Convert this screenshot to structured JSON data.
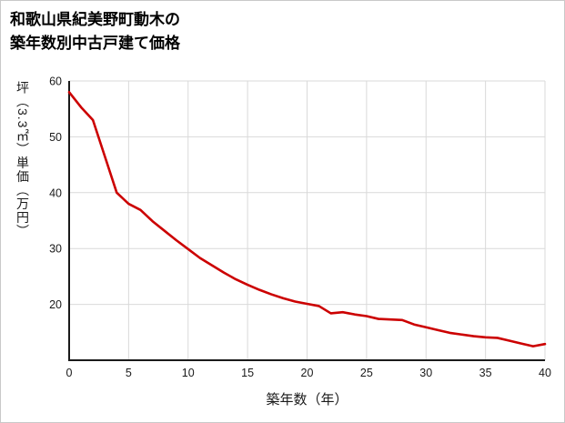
{
  "title": {
    "line1": "和歌山県紀美野町動木の",
    "line2": "築年数別中古戸建て価格"
  },
  "chart_data": {
    "type": "line",
    "title": "和歌山県紀美野町動木の築年数別中古戸建て価格",
    "xlabel": "築年数（年）",
    "ylabel": "坪（3.3㎡）単価（万円）",
    "x": [
      0,
      1,
      2,
      3,
      4,
      5,
      6,
      7,
      8,
      9,
      10,
      11,
      12,
      13,
      14,
      15,
      16,
      17,
      18,
      19,
      20,
      21,
      22,
      23,
      24,
      25,
      26,
      27,
      28,
      29,
      30,
      31,
      32,
      33,
      34,
      35,
      36,
      37,
      38,
      39,
      40
    ],
    "values": [
      58,
      55.3,
      53,
      46.5,
      40,
      38,
      36.9,
      34.9,
      33.2,
      31.5,
      29.9,
      28.3,
      27,
      25.7,
      24.5,
      23.5,
      22.6,
      21.8,
      21.1,
      20.5,
      20.1,
      19.7,
      18.4,
      18.6,
      18.2,
      17.9,
      17.4,
      17.3,
      17.2,
      16.4,
      15.9,
      15.4,
      14.9,
      14.6,
      14.3,
      14.1,
      14,
      13.5,
      13,
      12.5,
      12.9
    ],
    "xlim": [
      0,
      40
    ],
    "ylim": [
      10,
      60
    ],
    "x_ticks": [
      0,
      5,
      10,
      15,
      20,
      25,
      30,
      35,
      40
    ],
    "y_ticks": [
      20,
      30,
      40,
      50,
      60
    ],
    "grid": true,
    "legend_position": "none",
    "colors": {
      "line": "#cc0000",
      "grid": "#d9d9d9",
      "axis": "#1a1a1a",
      "text": "#1a1a1a"
    }
  }
}
